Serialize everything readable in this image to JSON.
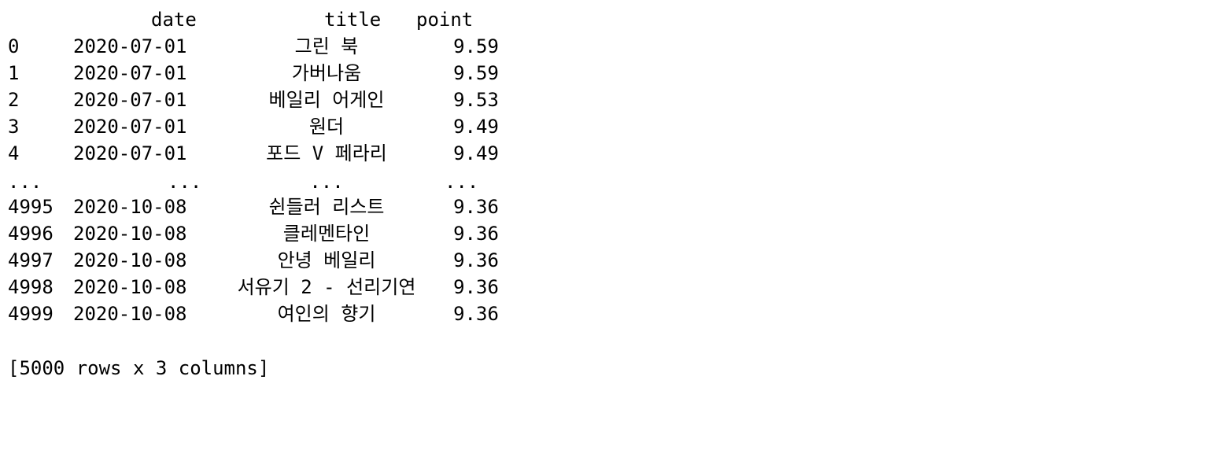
{
  "header": {
    "date": "date",
    "title": "title",
    "point": "point"
  },
  "rows": [
    {
      "index": "0",
      "date": "2020-07-01",
      "title": "그린 북",
      "point": "9.59"
    },
    {
      "index": "1",
      "date": "2020-07-01",
      "title": "가버나움",
      "point": "9.59"
    },
    {
      "index": "2",
      "date": "2020-07-01",
      "title": "베일리 어게인",
      "point": "9.53"
    },
    {
      "index": "3",
      "date": "2020-07-01",
      "title": "원더",
      "point": "9.49"
    },
    {
      "index": "4",
      "date": "2020-07-01",
      "title": "포드 V 페라리",
      "point": "9.49"
    },
    {
      "index": "...",
      "date": "...",
      "title": "...",
      "point": "..."
    },
    {
      "index": "4995",
      "date": "2020-10-08",
      "title": "쉰들러 리스트",
      "point": "9.36"
    },
    {
      "index": "4996",
      "date": "2020-10-08",
      "title": "클레멘타인",
      "point": "9.36"
    },
    {
      "index": "4997",
      "date": "2020-10-08",
      "title": "안녕 베일리",
      "point": "9.36"
    },
    {
      "index": "4998",
      "date": "2020-10-08",
      "title": "서유기 2 - 선리기연",
      "point": "9.36"
    },
    {
      "index": "4999",
      "date": "2020-10-08",
      "title": "여인의 향기",
      "point": "9.36"
    }
  ],
  "footer": "[5000 rows x 3 columns]"
}
